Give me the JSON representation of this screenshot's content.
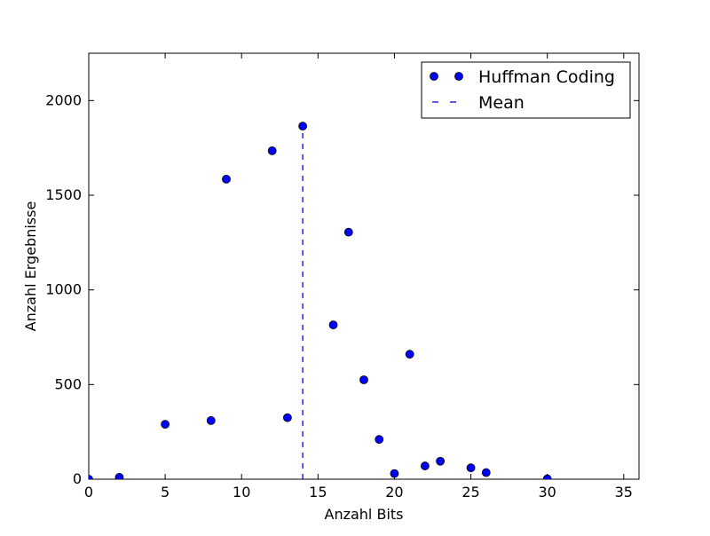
{
  "chart_data": {
    "type": "scatter",
    "title": "",
    "xlabel": "Anzahl Bits",
    "ylabel": "Anzahl Ergebnisse",
    "xlim": [
      0,
      36
    ],
    "ylim": [
      0,
      2250
    ],
    "xticks": [
      0,
      5,
      10,
      15,
      20,
      25,
      30,
      35
    ],
    "xtick_labels": [
      "0",
      "5",
      "10",
      "15",
      "20",
      "25",
      "30",
      "35"
    ],
    "yticks": [
      0,
      500,
      1000,
      1500,
      2000
    ],
    "ytick_labels": [
      "0",
      "500",
      "1000",
      "1500",
      "2000"
    ],
    "grid": false,
    "legend_position": "top-right",
    "series": [
      {
        "name": "Huffman Coding",
        "kind": "markers",
        "color": "#0000ff",
        "points": [
          {
            "x": 0,
            "y": 0
          },
          {
            "x": 2,
            "y": 10
          },
          {
            "x": 5,
            "y": 290
          },
          {
            "x": 8,
            "y": 310
          },
          {
            "x": 9,
            "y": 1585
          },
          {
            "x": 12,
            "y": 1735
          },
          {
            "x": 13,
            "y": 325
          },
          {
            "x": 14,
            "y": 1865
          },
          {
            "x": 16,
            "y": 815
          },
          {
            "x": 17,
            "y": 1305
          },
          {
            "x": 18,
            "y": 525
          },
          {
            "x": 19,
            "y": 210
          },
          {
            "x": 20,
            "y": 30
          },
          {
            "x": 21,
            "y": 660
          },
          {
            "x": 22,
            "y": 70
          },
          {
            "x": 23,
            "y": 95
          },
          {
            "x": 25,
            "y": 60
          },
          {
            "x": 26,
            "y": 35
          },
          {
            "x": 30,
            "y": 2
          }
        ]
      },
      {
        "name": "Mean",
        "kind": "vline-dashed",
        "color": "#0000ff",
        "x": 14,
        "y_from": 0,
        "y_to": 1865
      }
    ]
  }
}
